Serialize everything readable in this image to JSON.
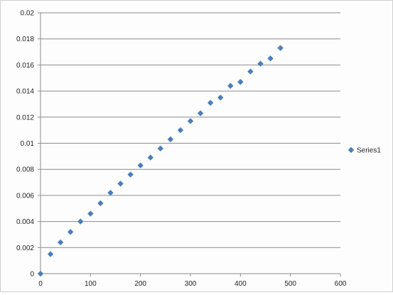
{
  "chart_data": {
    "type": "scatter",
    "title": "",
    "xlabel": "",
    "ylabel": "",
    "xlim": [
      0,
      600
    ],
    "ylim": [
      0,
      0.02
    ],
    "x_ticks": [
      "0",
      "100",
      "200",
      "300",
      "400",
      "500",
      "600"
    ],
    "y_ticks": [
      "0",
      "0.002",
      "0.004",
      "0.006",
      "0.008",
      "0.01",
      "0.012",
      "0.014",
      "0.016",
      "0.018",
      "0.02"
    ],
    "grid": true,
    "legend_position": "right",
    "series": [
      {
        "name": "Series1",
        "color": "#4a7ebb",
        "marker": "diamond",
        "x": [
          0,
          20,
          40,
          60,
          80,
          100,
          120,
          140,
          160,
          180,
          200,
          220,
          240,
          260,
          280,
          300,
          320,
          340,
          360,
          380,
          400,
          420,
          440,
          460,
          480
        ],
        "y": [
          0,
          0.0015,
          0.0024,
          0.0032,
          0.004,
          0.0046,
          0.0054,
          0.0062,
          0.0069,
          0.0076,
          0.0083,
          0.0089,
          0.0096,
          0.0103,
          0.011,
          0.0117,
          0.0123,
          0.0131,
          0.0135,
          0.0144,
          0.0147,
          0.0155,
          0.0161,
          0.0165,
          0.0173
        ]
      }
    ]
  }
}
